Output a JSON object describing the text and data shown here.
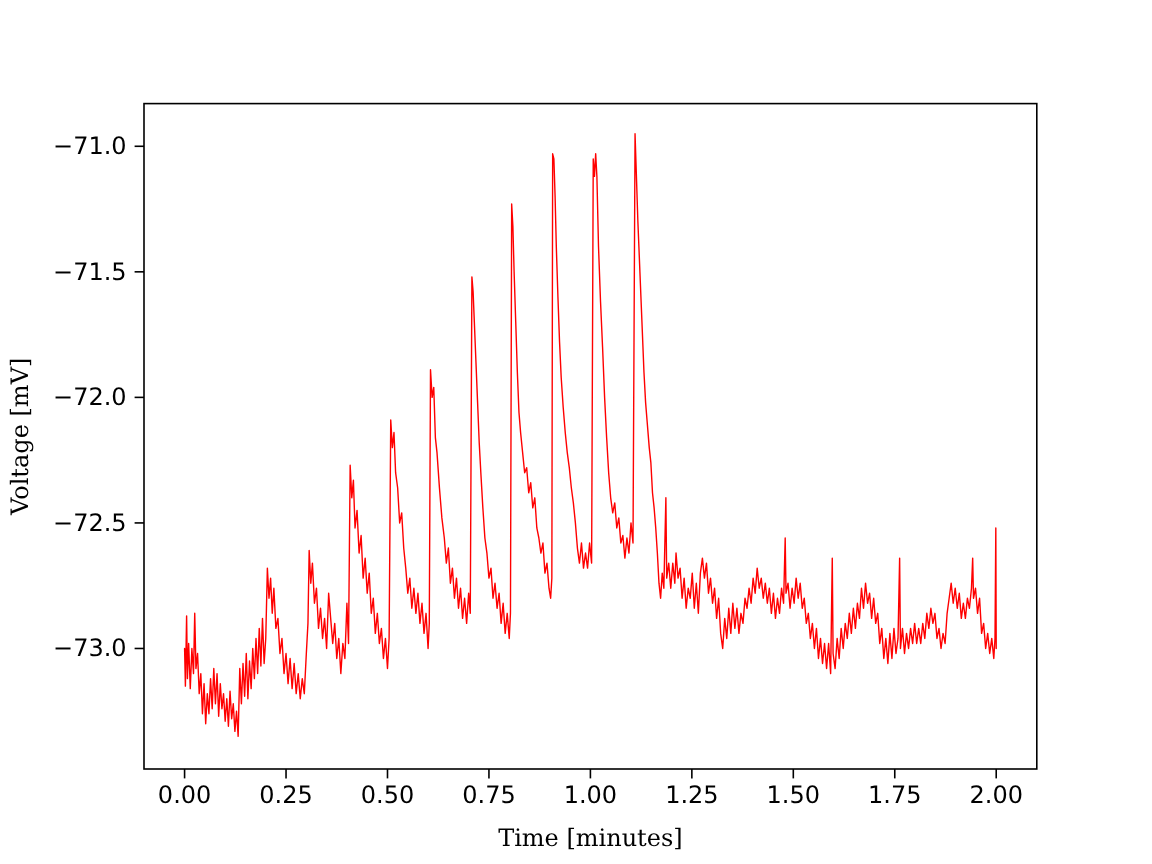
{
  "chart_data": {
    "type": "line",
    "xlabel": "Time [minutes]",
    "ylabel": "Voltage [mV]",
    "line_style": "solid",
    "xlim": [
      -0.1,
      2.1
    ],
    "ylim": [
      -73.48,
      -70.83
    ],
    "xticks": [
      {
        "value": 0,
        "label": "0.00"
      },
      {
        "value": 0.25,
        "label": "0.25"
      },
      {
        "value": 0.5,
        "label": "0.50"
      },
      {
        "value": 0.75,
        "label": "0.75"
      },
      {
        "value": 1,
        "label": "1.00"
      },
      {
        "value": 1.25,
        "label": "1.25"
      },
      {
        "value": 1.5,
        "label": "1.50"
      },
      {
        "value": 1.75,
        "label": "1.75"
      },
      {
        "value": 2,
        "label": "2.00"
      }
    ],
    "yticks": [
      {
        "value": -73,
        "label": "−73.0"
      },
      {
        "value": -72.5,
        "label": "−72.5"
      },
      {
        "value": -72,
        "label": "−72.0"
      },
      {
        "value": -71.5,
        "label": "−71.5"
      },
      {
        "value": -71,
        "label": "−71.0"
      }
    ],
    "x": [
      0,
      0.002,
      0.005,
      0.007,
      0.01,
      0.014,
      0.018,
      0.022,
      0.025,
      0.028,
      0.032,
      0.036,
      0.04,
      0.044,
      0.048,
      0.052,
      0.056,
      0.06,
      0.064,
      0.068,
      0.072,
      0.076,
      0.08,
      0.084,
      0.088,
      0.092,
      0.096,
      0.1,
      0.104,
      0.108,
      0.112,
      0.116,
      0.12,
      0.124,
      0.128,
      0.132,
      0.136,
      0.14,
      0.144,
      0.148,
      0.152,
      0.156,
      0.16,
      0.164,
      0.168,
      0.172,
      0.176,
      0.18,
      0.184,
      0.188,
      0.192,
      0.196,
      0.2,
      0.204,
      0.208,
      0.212,
      0.216,
      0.22,
      0.225,
      0.23,
      0.235,
      0.24,
      0.245,
      0.25,
      0.255,
      0.26,
      0.265,
      0.27,
      0.275,
      0.28,
      0.285,
      0.29,
      0.295,
      0.3,
      0.304,
      0.307,
      0.311,
      0.315,
      0.32,
      0.325,
      0.33,
      0.335,
      0.34,
      0.345,
      0.35,
      0.355,
      0.36,
      0.365,
      0.37,
      0.375,
      0.38,
      0.385,
      0.39,
      0.395,
      0.4,
      0.404,
      0.408,
      0.412,
      0.416,
      0.42,
      0.425,
      0.43,
      0.435,
      0.44,
      0.445,
      0.45,
      0.455,
      0.46,
      0.465,
      0.47,
      0.475,
      0.48,
      0.485,
      0.49,
      0.495,
      0.5,
      0.504,
      0.508,
      0.512,
      0.516,
      0.52,
      0.525,
      0.53,
      0.535,
      0.54,
      0.545,
      0.55,
      0.555,
      0.56,
      0.565,
      0.57,
      0.575,
      0.58,
      0.585,
      0.59,
      0.595,
      0.6,
      0.603,
      0.606,
      0.61,
      0.614,
      0.618,
      0.622,
      0.628,
      0.634,
      0.64,
      0.645,
      0.65,
      0.655,
      0.66,
      0.665,
      0.67,
      0.675,
      0.68,
      0.685,
      0.69,
      0.695,
      0.7,
      0.704,
      0.708,
      0.711,
      0.714,
      0.718,
      0.722,
      0.726,
      0.73,
      0.735,
      0.74,
      0.745,
      0.75,
      0.755,
      0.76,
      0.765,
      0.77,
      0.775,
      0.78,
      0.785,
      0.79,
      0.795,
      0.8,
      0.803,
      0.806,
      0.809,
      0.812,
      0.816,
      0.82,
      0.824,
      0.828,
      0.833,
      0.838,
      0.843,
      0.848,
      0.853,
      0.858,
      0.863,
      0.868,
      0.873,
      0.878,
      0.883,
      0.888,
      0.893,
      0.898,
      0.902,
      0.905,
      0.907,
      0.91,
      0.913,
      0.916,
      0.92,
      0.924,
      0.928,
      0.933,
      0.938,
      0.943,
      0.948,
      0.953,
      0.958,
      0.963,
      0.968,
      0.973,
      0.978,
      0.983,
      0.988,
      0.993,
      0.998,
      1.003,
      1.007,
      1.01,
      1.013,
      1.016,
      1.02,
      1.025,
      1.03,
      1.035,
      1.04,
      1.045,
      1.05,
      1.055,
      1.06,
      1.065,
      1.07,
      1.075,
      1.08,
      1.085,
      1.09,
      1.095,
      1.1,
      1.105,
      1.11,
      1.113,
      1.117,
      1.12,
      1.124,
      1.128,
      1.132,
      1.136,
      1.14,
      1.145,
      1.149,
      1.153,
      1.157,
      1.161,
      1.165,
      1.169,
      1.173,
      1.177,
      1.181,
      1.186,
      1.188,
      1.193,
      1.198,
      1.203,
      1.208,
      1.211,
      1.216,
      1.221,
      1.226,
      1.231,
      1.236,
      1.241,
      1.246,
      1.251,
      1.256,
      1.261,
      1.266,
      1.271,
      1.276,
      1.281,
      1.286,
      1.291,
      1.296,
      1.301,
      1.306,
      1.311,
      1.316,
      1.321,
      1.326,
      1.331,
      1.336,
      1.341,
      1.346,
      1.351,
      1.356,
      1.361,
      1.366,
      1.371,
      1.376,
      1.381,
      1.386,
      1.391,
      1.396,
      1.401,
      1.406,
      1.411,
      1.416,
      1.421,
      1.426,
      1.431,
      1.436,
      1.441,
      1.446,
      1.451,
      1.456,
      1.461,
      1.466,
      1.471,
      1.476,
      1.48,
      1.482,
      1.487,
      1.492,
      1.497,
      1.502,
      1.507,
      1.512,
      1.517,
      1.522,
      1.527,
      1.532,
      1.537,
      1.542,
      1.547,
      1.552,
      1.557,
      1.562,
      1.567,
      1.572,
      1.577,
      1.582,
      1.587,
      1.592,
      1.596,
      1.598,
      1.603,
      1.608,
      1.613,
      1.618,
      1.623,
      1.628,
      1.633,
      1.638,
      1.643,
      1.648,
      1.653,
      1.658,
      1.663,
      1.668,
      1.673,
      1.678,
      1.683,
      1.688,
      1.693,
      1.698,
      1.703,
      1.708,
      1.713,
      1.718,
      1.723,
      1.728,
      1.733,
      1.738,
      1.743,
      1.748,
      1.753,
      1.758,
      1.762,
      1.764,
      1.769,
      1.774,
      1.779,
      1.784,
      1.789,
      1.794,
      1.799,
      1.804,
      1.809,
      1.814,
      1.819,
      1.824,
      1.829,
      1.834,
      1.839,
      1.844,
      1.849,
      1.854,
      1.859,
      1.864,
      1.869,
      1.874,
      1.879,
      1.884,
      1.889,
      1.894,
      1.899,
      1.904,
      1.909,
      1.914,
      1.919,
      1.924,
      1.929,
      1.934,
      1.939,
      1.942,
      1.944,
      1.949,
      1.954,
      1.959,
      1.964,
      1.969,
      1.974,
      1.979,
      1.984,
      1.989,
      1.994,
      1.997,
      1.999,
      2.0
    ],
    "series": [
      {
        "color": "#ff0000",
        "values": [
          -73.0,
          -73.15,
          -72.87,
          -73.12,
          -72.98,
          -73.16,
          -73.0,
          -73.1,
          -72.86,
          -73.08,
          -73.02,
          -73.18,
          -73.1,
          -73.26,
          -73.14,
          -73.3,
          -73.18,
          -73.26,
          -73.12,
          -73.24,
          -73.08,
          -73.22,
          -73.1,
          -73.27,
          -73.14,
          -73.24,
          -73.18,
          -73.29,
          -73.2,
          -73.31,
          -73.17,
          -73.28,
          -73.22,
          -73.33,
          -73.25,
          -73.35,
          -73.08,
          -73.22,
          -73.06,
          -73.19,
          -73.02,
          -73.2,
          -73.05,
          -73.16,
          -73.0,
          -73.12,
          -72.96,
          -73.1,
          -72.92,
          -73.07,
          -72.88,
          -73.06,
          -72.96,
          -72.68,
          -72.8,
          -72.72,
          -72.86,
          -72.76,
          -72.92,
          -72.88,
          -73.02,
          -72.96,
          -73.1,
          -73.02,
          -73.14,
          -73.04,
          -73.16,
          -73.06,
          -73.18,
          -73.1,
          -73.2,
          -73.12,
          -73.18,
          -73.02,
          -72.9,
          -72.61,
          -72.74,
          -72.66,
          -72.82,
          -72.76,
          -72.92,
          -72.84,
          -72.96,
          -72.88,
          -73.0,
          -72.78,
          -72.88,
          -72.98,
          -72.9,
          -73.04,
          -72.96,
          -73.1,
          -72.98,
          -73.04,
          -72.82,
          -72.98,
          -72.27,
          -72.4,
          -72.33,
          -72.52,
          -72.45,
          -72.62,
          -72.55,
          -72.72,
          -72.64,
          -72.78,
          -72.7,
          -72.86,
          -72.8,
          -72.94,
          -72.86,
          -72.98,
          -72.92,
          -73.04,
          -72.96,
          -73.08,
          -72.96,
          -72.09,
          -72.2,
          -72.14,
          -72.3,
          -72.36,
          -72.5,
          -72.46,
          -72.6,
          -72.68,
          -72.78,
          -72.72,
          -72.84,
          -72.76,
          -72.86,
          -72.78,
          -72.9,
          -72.82,
          -72.94,
          -72.86,
          -73.0,
          -72.9,
          -71.89,
          -72.0,
          -71.96,
          -72.16,
          -72.22,
          -72.36,
          -72.48,
          -72.56,
          -72.66,
          -72.6,
          -72.74,
          -72.68,
          -72.8,
          -72.72,
          -72.84,
          -72.76,
          -72.88,
          -72.8,
          -72.9,
          -72.78,
          -72.86,
          -71.52,
          -71.58,
          -71.7,
          -71.86,
          -72.02,
          -72.18,
          -72.3,
          -72.44,
          -72.56,
          -72.62,
          -72.72,
          -72.68,
          -72.8,
          -72.74,
          -72.84,
          -72.78,
          -72.9,
          -72.82,
          -72.94,
          -72.86,
          -72.96,
          -72.86,
          -71.23,
          -71.32,
          -71.5,
          -71.7,
          -71.9,
          -72.06,
          -72.14,
          -72.22,
          -72.3,
          -72.28,
          -72.38,
          -72.34,
          -72.44,
          -72.4,
          -72.52,
          -72.56,
          -72.62,
          -72.58,
          -72.7,
          -72.66,
          -72.76,
          -72.8,
          -72.72,
          -71.03,
          -71.05,
          -71.2,
          -71.4,
          -71.6,
          -71.78,
          -71.92,
          -72.04,
          -72.14,
          -72.22,
          -72.28,
          -72.36,
          -72.42,
          -72.5,
          -72.6,
          -72.66,
          -72.58,
          -72.68,
          -72.62,
          -72.68,
          -72.58,
          -72.66,
          -71.05,
          -71.12,
          -71.03,
          -71.12,
          -71.4,
          -71.62,
          -71.8,
          -72.0,
          -72.16,
          -72.3,
          -72.4,
          -72.46,
          -72.42,
          -72.52,
          -72.48,
          -72.58,
          -72.55,
          -72.64,
          -72.56,
          -72.62,
          -72.5,
          -72.58,
          -70.95,
          -71.1,
          -71.3,
          -71.42,
          -71.58,
          -71.74,
          -71.9,
          -72.02,
          -72.1,
          -72.2,
          -72.26,
          -72.38,
          -72.44,
          -72.52,
          -72.62,
          -72.74,
          -72.8,
          -72.7,
          -72.76,
          -72.4,
          -72.72,
          -72.66,
          -72.76,
          -72.66,
          -72.74,
          -72.62,
          -72.72,
          -72.68,
          -72.8,
          -72.72,
          -72.84,
          -72.76,
          -72.8,
          -72.7,
          -72.84,
          -72.74,
          -72.86,
          -72.7,
          -72.64,
          -72.72,
          -72.66,
          -72.78,
          -72.72,
          -72.82,
          -72.76,
          -72.88,
          -72.8,
          -72.94,
          -73.0,
          -72.88,
          -72.96,
          -72.84,
          -72.94,
          -72.82,
          -72.92,
          -72.84,
          -72.94,
          -72.86,
          -72.9,
          -72.8,
          -72.84,
          -72.76,
          -72.82,
          -72.72,
          -72.78,
          -72.68,
          -72.76,
          -72.72,
          -72.8,
          -72.74,
          -72.82,
          -72.76,
          -72.86,
          -72.78,
          -72.88,
          -72.8,
          -72.86,
          -72.76,
          -72.82,
          -72.56,
          -72.78,
          -72.74,
          -72.84,
          -72.76,
          -72.82,
          -72.72,
          -72.8,
          -72.74,
          -72.84,
          -72.8,
          -72.9,
          -72.86,
          -72.96,
          -72.9,
          -73.0,
          -72.92,
          -73.04,
          -72.96,
          -73.06,
          -72.98,
          -73.08,
          -72.98,
          -73.1,
          -72.64,
          -73.02,
          -73.08,
          -72.96,
          -73.04,
          -72.92,
          -73.0,
          -72.9,
          -72.96,
          -72.86,
          -72.94,
          -72.84,
          -72.92,
          -72.82,
          -72.88,
          -72.76,
          -72.84,
          -72.74,
          -72.82,
          -72.78,
          -72.88,
          -72.8,
          -72.9,
          -72.86,
          -72.98,
          -72.92,
          -73.04,
          -72.96,
          -73.06,
          -72.94,
          -73.04,
          -72.92,
          -73.02,
          -72.96,
          -72.64,
          -73.0,
          -72.92,
          -73.02,
          -72.94,
          -73.0,
          -72.92,
          -72.98,
          -72.9,
          -72.98,
          -72.92,
          -72.98,
          -72.9,
          -72.96,
          -72.86,
          -72.92,
          -72.84,
          -72.9,
          -72.86,
          -72.96,
          -72.92,
          -73.0,
          -72.94,
          -72.98,
          -72.86,
          -72.8,
          -72.74,
          -72.82,
          -72.76,
          -72.84,
          -72.78,
          -72.88,
          -72.82,
          -72.88,
          -72.8,
          -72.84,
          -72.76,
          -72.64,
          -72.8,
          -72.76,
          -72.86,
          -72.8,
          -72.94,
          -72.9,
          -73.0,
          -72.94,
          -73.02,
          -72.96,
          -73.04,
          -72.96,
          -72.52,
          -73.0
        ]
      }
    ]
  }
}
